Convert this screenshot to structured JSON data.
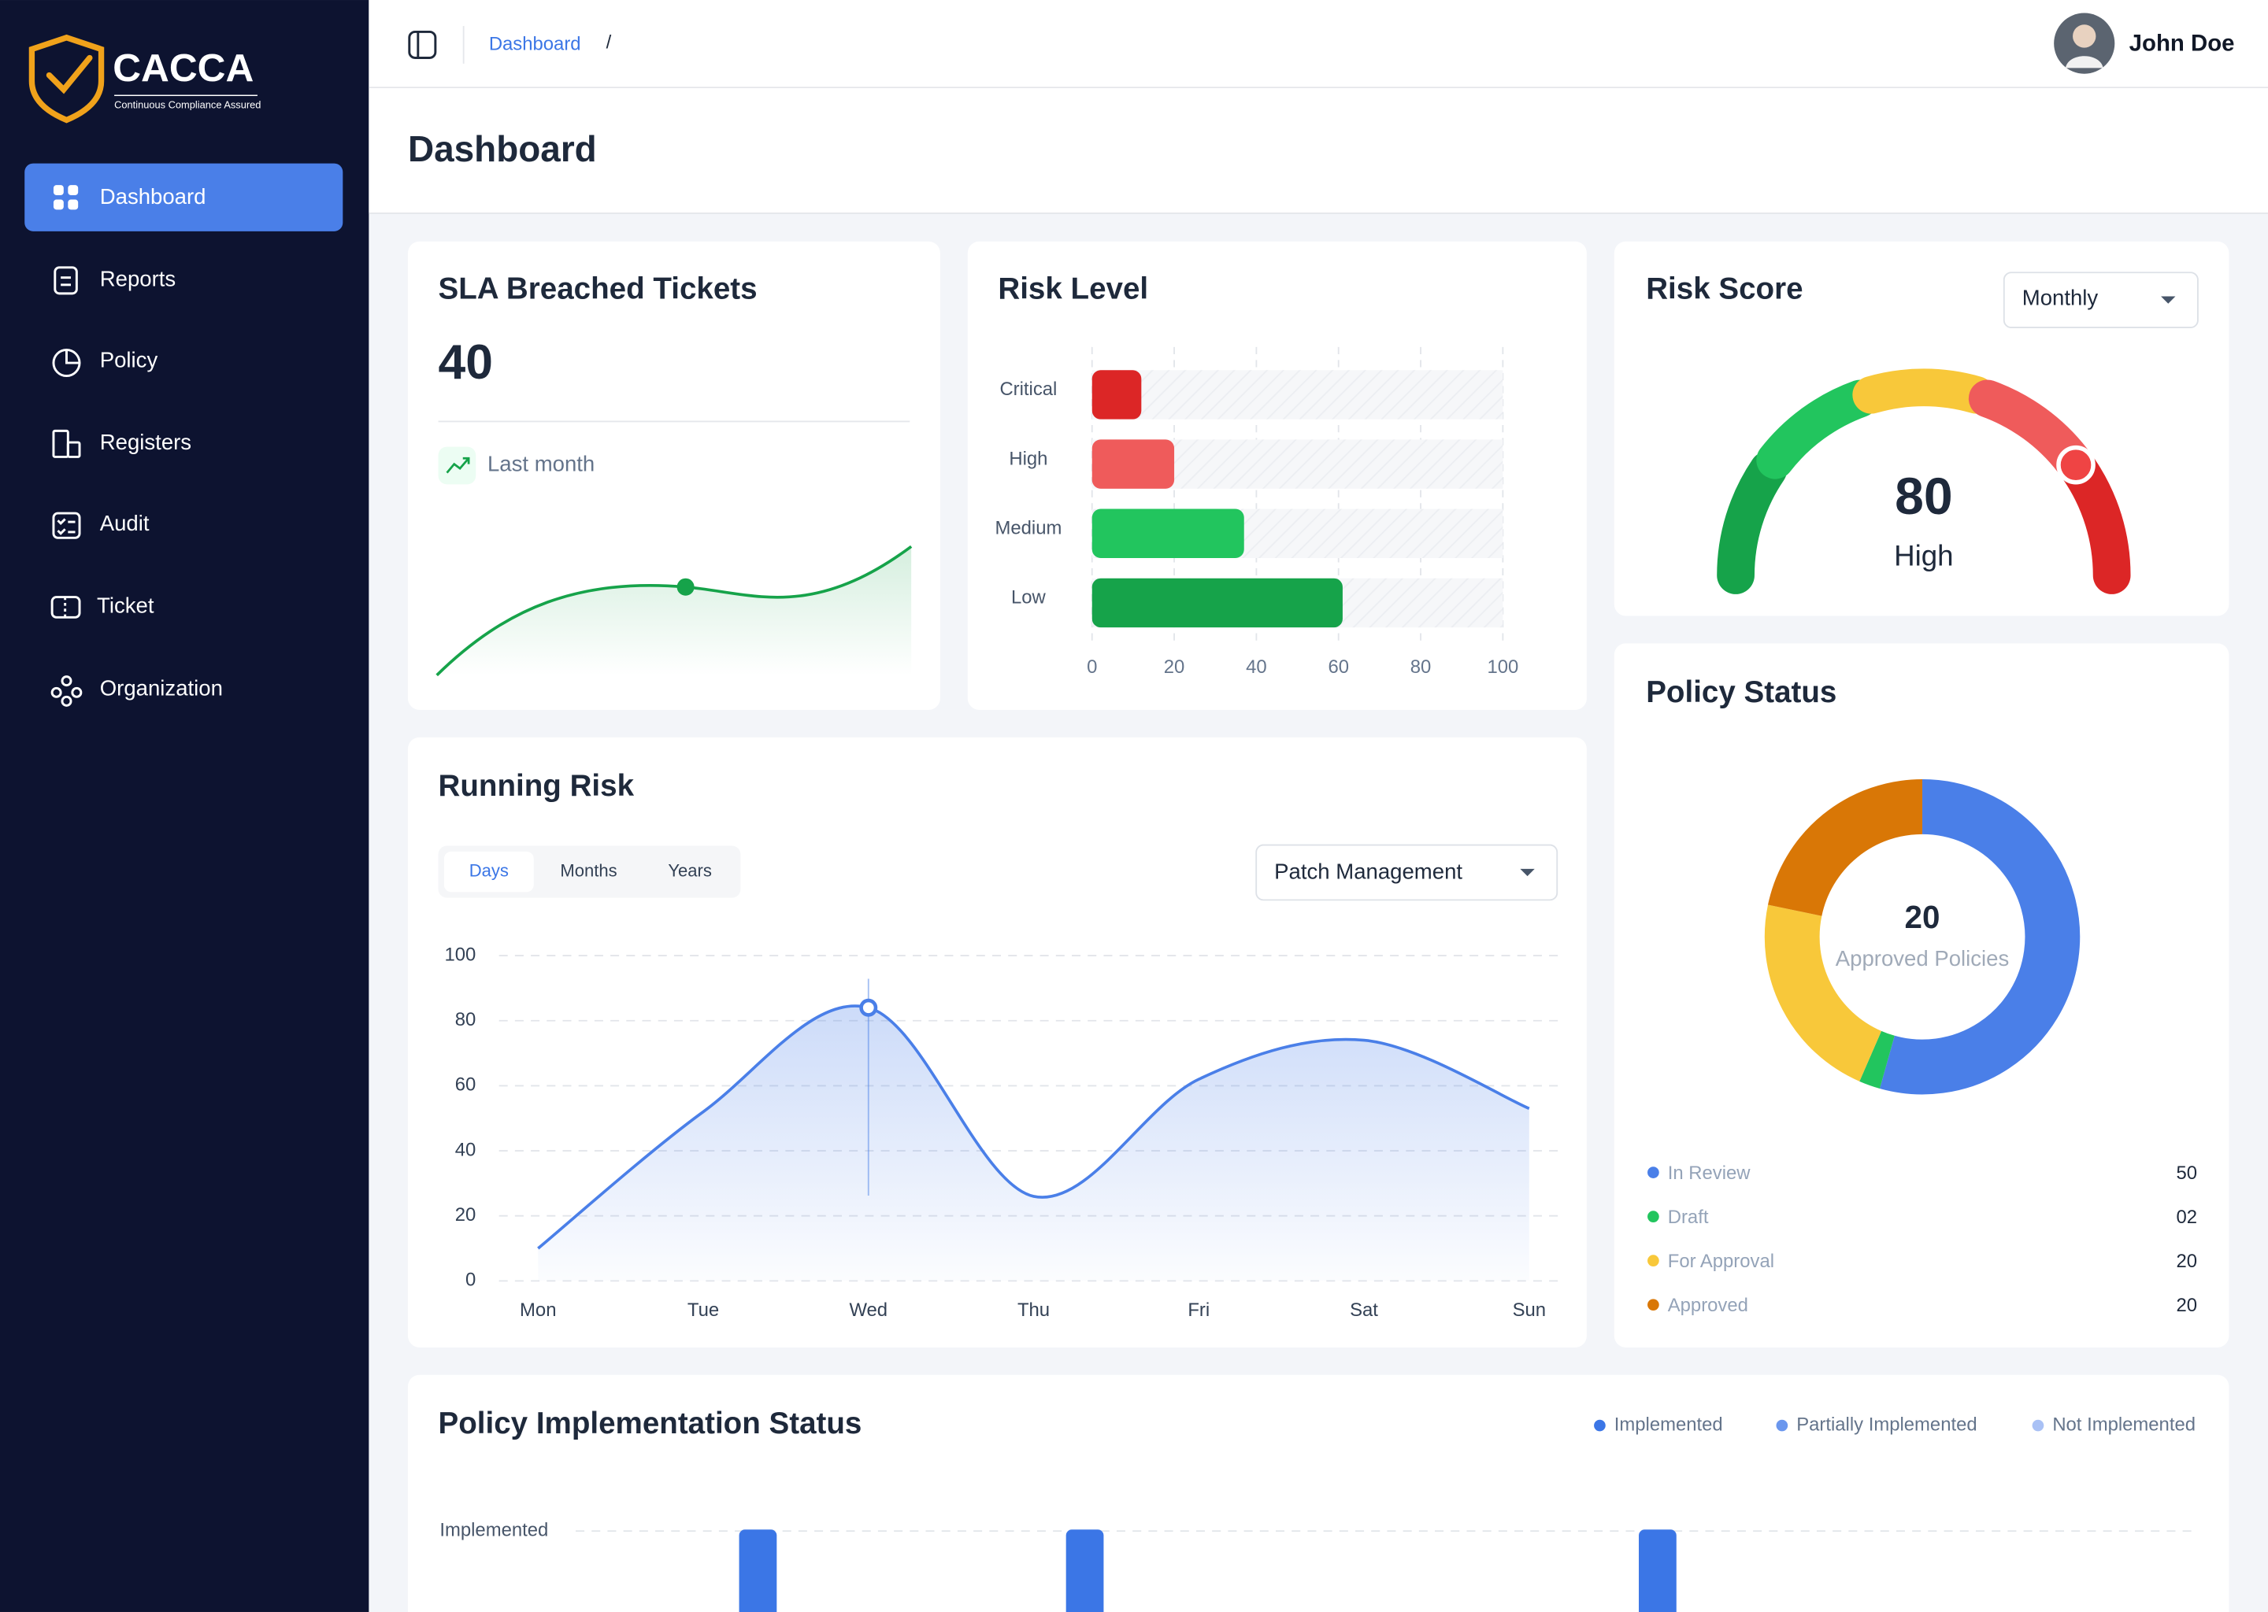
{
  "sidebar": {
    "brand": "CACCA",
    "tagline": "Continuous Compliance Assured",
    "nav": [
      "Dashboard",
      "Reports",
      "Policy",
      "Registers",
      "Audit",
      "Ticket",
      "Organization"
    ]
  },
  "header": {
    "breadcrumb": "Dashboard",
    "separator": "/",
    "user": "John Doe"
  },
  "page_title": "Dashboard",
  "sla_card": {
    "title": "SLA Breached Tickets",
    "value": 40,
    "caption": "Last month"
  },
  "chart_data": [
    {
      "type": "bar",
      "orientation": "horizontal",
      "title": "Risk Level",
      "categories": [
        "Critical",
        "High",
        "Medium",
        "Low"
      ],
      "values": [
        12,
        20,
        37,
        61
      ],
      "colors": [
        "#dc2626",
        "#ef5b5b",
        "#22c55e",
        "#16a34a"
      ],
      "xlim": [
        0,
        100
      ],
      "xticks": [
        0,
        20,
        40,
        60,
        80,
        100
      ],
      "grid": true
    },
    {
      "type": "gauge",
      "title": "Risk Score",
      "period": "Monthly",
      "value": 80,
      "label": "High",
      "range": [
        0,
        100
      ],
      "colors": [
        "#16a34a",
        "#22c55e",
        "#f8c83a",
        "#ef5b5b",
        "#dc2626"
      ]
    },
    {
      "type": "line",
      "title": "Running Risk",
      "tabs": [
        "Days",
        "Months",
        "Years"
      ],
      "active_tab": 0,
      "filter": "Patch Management",
      "categories": [
        "Mon",
        "Tue",
        "Wed",
        "Thu",
        "Fri",
        "Sat",
        "Sun"
      ],
      "values": [
        10,
        52,
        84,
        26,
        62,
        74,
        53
      ],
      "color": "#4a7fe8",
      "area": true,
      "ylim": [
        0,
        100
      ],
      "yticks": [
        0,
        20,
        40,
        60,
        80,
        100
      ],
      "grid": true
    },
    {
      "type": "pie",
      "donut": true,
      "title": "Policy Status",
      "center_value": 20,
      "center_label": "Approved Policies",
      "categories": [
        "In Review",
        "Draft",
        "For Approval",
        "Approved"
      ],
      "values": [
        50,
        2,
        20,
        20
      ],
      "value_labels": [
        "50",
        "02",
        "20",
        "20"
      ],
      "colors": [
        "#4a7fe8",
        "#22c55e",
        "#f8c83a",
        "#d97706"
      ]
    },
    {
      "type": "bar",
      "title": "Policy Implementation Status",
      "categories": [
        "Implemented"
      ],
      "legend": [
        {
          "name": "Implemented",
          "color": "#3b76e6"
        },
        {
          "name": "Partially Implemented",
          "color": "#6b97ee"
        },
        {
          "name": "Not Implemented",
          "color": "#a9c1f5"
        }
      ]
    }
  ]
}
